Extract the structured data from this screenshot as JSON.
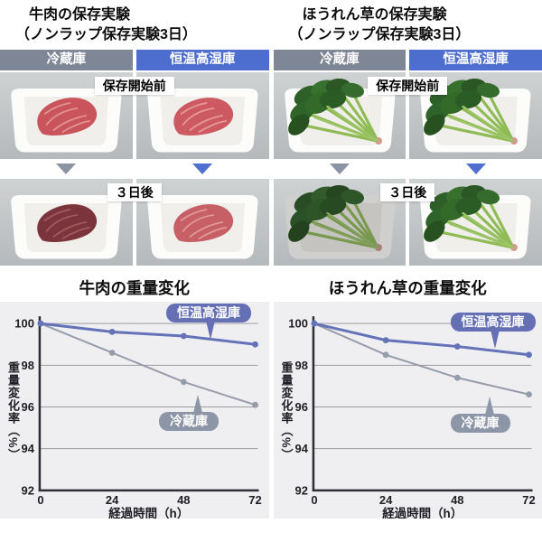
{
  "experiments": [
    {
      "title_line1": "牛肉の保存実験",
      "title_line2": "（ノンラップ保存実験3日）",
      "columns": [
        {
          "label": "冷蔵庫"
        },
        {
          "label": "恒温高湿庫"
        }
      ],
      "before_label": "保存開始前",
      "after_label": "３日後"
    },
    {
      "title_line1": "ほうれん草の保存実験",
      "title_line2": "（ノンラップ保存実験3日）",
      "columns": [
        {
          "label": "冷蔵庫"
        },
        {
          "label": "恒温高湿庫"
        }
      ],
      "before_label": "保存開始前",
      "after_label": "３日後"
    }
  ],
  "colors": {
    "fridge_gray": "#7f8695",
    "humid_blue": "#4d6ecf",
    "line_blue": "#6472b8",
    "line_gray": "#959dab",
    "chart_bg": "#efeff2",
    "grid": "#9b9ba1",
    "axis": "#2e2e34"
  },
  "chart_data": [
    {
      "type": "line",
      "title": "牛肉の重量変化",
      "xlabel": "経過時間（h）",
      "ylabel": "重量変化率（%）",
      "x": [
        0,
        24,
        48,
        72
      ],
      "xticks": [
        0,
        24,
        48,
        72
      ],
      "yticks": [
        92,
        94,
        96,
        98,
        100
      ],
      "ylim": [
        92,
        100
      ],
      "grid": true,
      "legend_position": "inline-callouts",
      "series": [
        {
          "name": "恒温高湿庫",
          "color": "#6472b8",
          "values": [
            100,
            99.6,
            99.4,
            99.0
          ]
        },
        {
          "name": "冷蔵庫",
          "color": "#959dab",
          "values": [
            100,
            98.6,
            97.2,
            96.1
          ]
        }
      ]
    },
    {
      "type": "line",
      "title": "ほうれん草の重量変化",
      "xlabel": "経過時間（h）",
      "ylabel": "重量変化率（%）",
      "x": [
        0,
        24,
        48,
        72
      ],
      "xticks": [
        0,
        24,
        48,
        72
      ],
      "yticks": [
        92,
        94,
        96,
        98,
        100
      ],
      "ylim": [
        92,
        100
      ],
      "grid": true,
      "legend_position": "inline-callouts",
      "series": [
        {
          "name": "恒温高湿庫",
          "color": "#6472b8",
          "values": [
            100,
            99.2,
            98.9,
            98.5
          ]
        },
        {
          "name": "冷蔵庫",
          "color": "#959dab",
          "values": [
            100,
            98.5,
            97.4,
            96.6
          ]
        }
      ]
    }
  ]
}
